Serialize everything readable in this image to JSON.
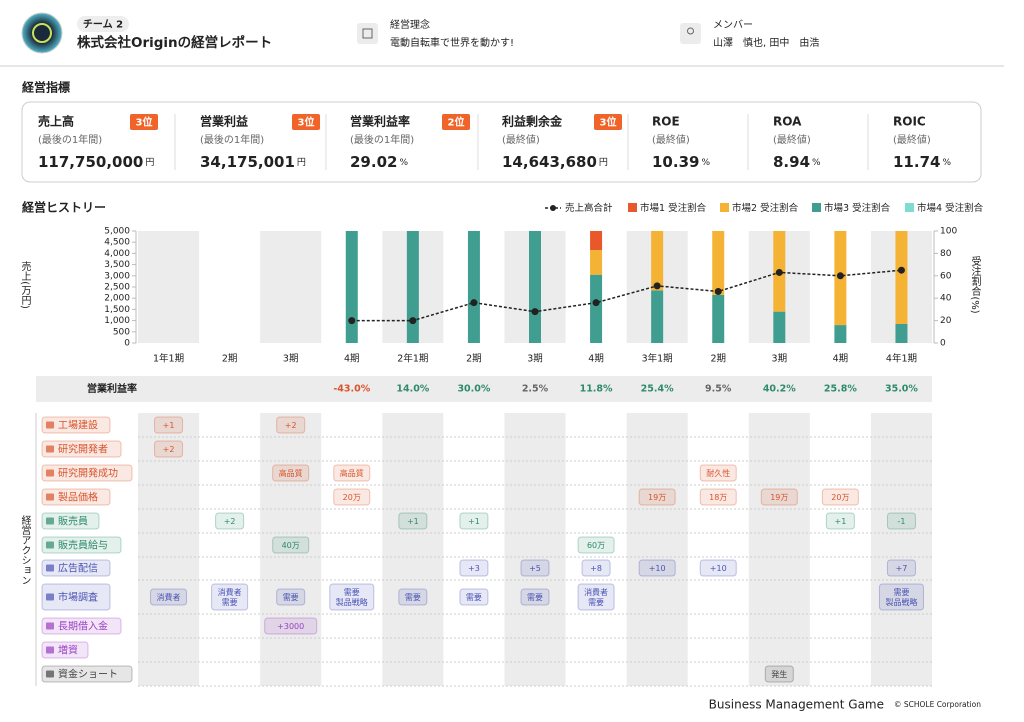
{
  "header": {
    "team": "チーム 2",
    "title": "株式会社Originの経営レポート",
    "philosophy_label": "経営理念",
    "philosophy": "電動自転車で世界を動かす!",
    "members_label": "メンバー",
    "members": "山澤　慎也, 田中　由浩"
  },
  "metrics_title": "経営指標",
  "metrics": [
    {
      "name": "売上高",
      "rank": "3位",
      "period": "(最後の1年間)",
      "value": "117,750,000",
      "unit": "円"
    },
    {
      "name": "営業利益",
      "rank": "3位",
      "period": "(最後の1年間)",
      "value": "34,175,001",
      "unit": "円"
    },
    {
      "name": "営業利益率",
      "rank": "2位",
      "period": "(最後の1年間)",
      "value": "29.02",
      "unit": "%"
    },
    {
      "name": "利益剰余金",
      "rank": "3位",
      "period": "(最終値)",
      "value": "14,643,680",
      "unit": "円"
    },
    {
      "name": "ROE",
      "period": "(最終値)",
      "value": "10.39",
      "unit": "%"
    },
    {
      "name": "ROA",
      "period": "(最終値)",
      "value": "8.94",
      "unit": "%"
    },
    {
      "name": "ROIC",
      "period": "(最終値)",
      "value": "11.74",
      "unit": "%"
    }
  ],
  "history_title": "経営ヒストリー",
  "chart_data": {
    "type": "combo",
    "categories": [
      "1年1期",
      "2期",
      "3期",
      "4期",
      "2年1期",
      "2期",
      "3期",
      "4期",
      "3年1期",
      "2期",
      "3期",
      "4期",
      "4年1期"
    ],
    "series": [
      {
        "name": "売上高合計",
        "type": "line",
        "color": "#222222",
        "values": [
          null,
          null,
          null,
          1000,
          1000,
          1800,
          1400,
          1800,
          2550,
          2300,
          3150,
          3000,
          3250
        ]
      },
      {
        "name": "市場1 受注割合",
        "type": "bar",
        "axis": "y2",
        "color": "#e8582a",
        "values": [
          null,
          null,
          null,
          0,
          0,
          0,
          0,
          17,
          0,
          0,
          0,
          0,
          0
        ]
      },
      {
        "name": "市場2 受注割合",
        "type": "bar",
        "axis": "y2",
        "color": "#f5b335",
        "values": [
          null,
          null,
          null,
          0,
          0,
          0,
          0,
          22,
          53,
          57,
          72,
          84,
          83
        ]
      },
      {
        "name": "市場3 受注割合",
        "type": "bar",
        "axis": "y2",
        "color": "#3f9e8f",
        "values": [
          null,
          null,
          null,
          100,
          100,
          100,
          100,
          61,
          47,
          43,
          28,
          16,
          17
        ]
      },
      {
        "name": "市場4 受注割合",
        "type": "bar",
        "axis": "y2",
        "color": "#7fdcd0",
        "values": [
          null,
          null,
          null,
          0,
          0,
          0,
          0,
          0,
          0,
          0,
          0,
          0,
          0
        ]
      }
    ],
    "ylim": [
      0,
      5000
    ],
    "yticks": [
      0,
      500,
      {
        "value": 1000,
        "label": "1,000"
      },
      {
        "value": 1500,
        "label": "1,500"
      },
      {
        "value": 2000,
        "label": "2,000"
      },
      {
        "value": 2500,
        "label": "2,500"
      },
      {
        "value": 3000,
        "label": "3,000"
      },
      {
        "value": 3500,
        "label": "3,500"
      },
      {
        "value": 4000,
        "label": "4,000"
      },
      {
        "value": 4500,
        "label": "4,500"
      },
      {
        "value": 5000,
        "label": "5,000"
      }
    ],
    "y2lim": [
      0,
      100
    ],
    "y2ticks": [
      0,
      20,
      40,
      60,
      80,
      100
    ],
    "ylabel": "売上(万円)",
    "y2label": "受注割合(%)",
    "grid": false
  },
  "operating_margin": {
    "label": "営業利益率",
    "values": [
      null,
      null,
      null,
      -43.0,
      14.0,
      30.0,
      2.5,
      11.8,
      25.4,
      9.5,
      40.2,
      25.8,
      35.0
    ],
    "value_labels": [
      null,
      null,
      null,
      "-43.0%",
      "14.0%",
      "30.0%",
      "2.5%",
      "11.8%",
      "25.4%",
      "9.5%",
      "40.2%",
      "25.8%",
      "35.0%"
    ]
  },
  "actions": {
    "label": "経営アクション",
    "rows": [
      {
        "name": "工場建設",
        "color": "#d9542b",
        "cells": [
          "+1",
          null,
          "+2",
          null,
          null,
          null,
          null,
          null,
          null,
          null,
          null,
          null,
          null
        ]
      },
      {
        "name": "研究開発者",
        "color": "#d9542b",
        "cells": [
          "+2",
          null,
          null,
          null,
          null,
          null,
          null,
          null,
          null,
          null,
          null,
          null,
          null
        ]
      },
      {
        "name": "研究開発成功",
        "color": "#d9542b",
        "cells": [
          null,
          null,
          "高品質",
          "高品質",
          null,
          null,
          null,
          null,
          null,
          "耐久性",
          null,
          null,
          null
        ]
      },
      {
        "name": "製品価格",
        "color": "#d9542b",
        "cells": [
          null,
          null,
          null,
          "20万",
          null,
          null,
          null,
          null,
          "19万",
          "18万",
          "19万",
          "20万",
          null
        ]
      },
      {
        "name": "販売員",
        "color": "#2e8b6a",
        "cells": [
          null,
          "+2",
          null,
          null,
          "+1",
          "+1",
          null,
          null,
          null,
          null,
          null,
          "+1",
          "-1"
        ]
      },
      {
        "name": "販売員給与",
        "color": "#2e8b6a",
        "cells": [
          null,
          null,
          "40万",
          null,
          null,
          null,
          null,
          "60万",
          null,
          null,
          null,
          null,
          null
        ]
      },
      {
        "name": "広告配信",
        "color": "#4a53b5",
        "cells": [
          null,
          null,
          null,
          null,
          null,
          "+3",
          "+5",
          "+8",
          "+10",
          "+10",
          null,
          null,
          "+7"
        ]
      },
      {
        "name": "市場調査",
        "color": "#4a53b5",
        "cells": [
          [
            "消費者"
          ],
          [
            "消費者",
            "需要"
          ],
          [
            "需要"
          ],
          [
            "需要",
            "製品戦略"
          ],
          [
            "需要"
          ],
          [
            "需要"
          ],
          [
            "需要"
          ],
          [
            "消費者",
            "需要"
          ],
          null,
          null,
          null,
          null,
          [
            "需要",
            "製品戦略"
          ]
        ]
      },
      {
        "name": "長期借入金",
        "color": "#9b3fc4",
        "cells": [
          null,
          null,
          "+3000",
          null,
          null,
          null,
          null,
          null,
          null,
          null,
          null,
          null,
          null
        ]
      },
      {
        "name": "増資",
        "color": "#9b3fc4",
        "cells": [
          null,
          null,
          null,
          null,
          null,
          null,
          null,
          null,
          null,
          null,
          null,
          null,
          null
        ]
      },
      {
        "name": "資金ショート",
        "color": "#444444",
        "cells": [
          null,
          null,
          null,
          null,
          null,
          null,
          null,
          null,
          null,
          null,
          "発生",
          null,
          null
        ]
      }
    ]
  },
  "footer": {
    "brand": "Business Management Game",
    "copyright": "© SCHOLE Corporation"
  }
}
